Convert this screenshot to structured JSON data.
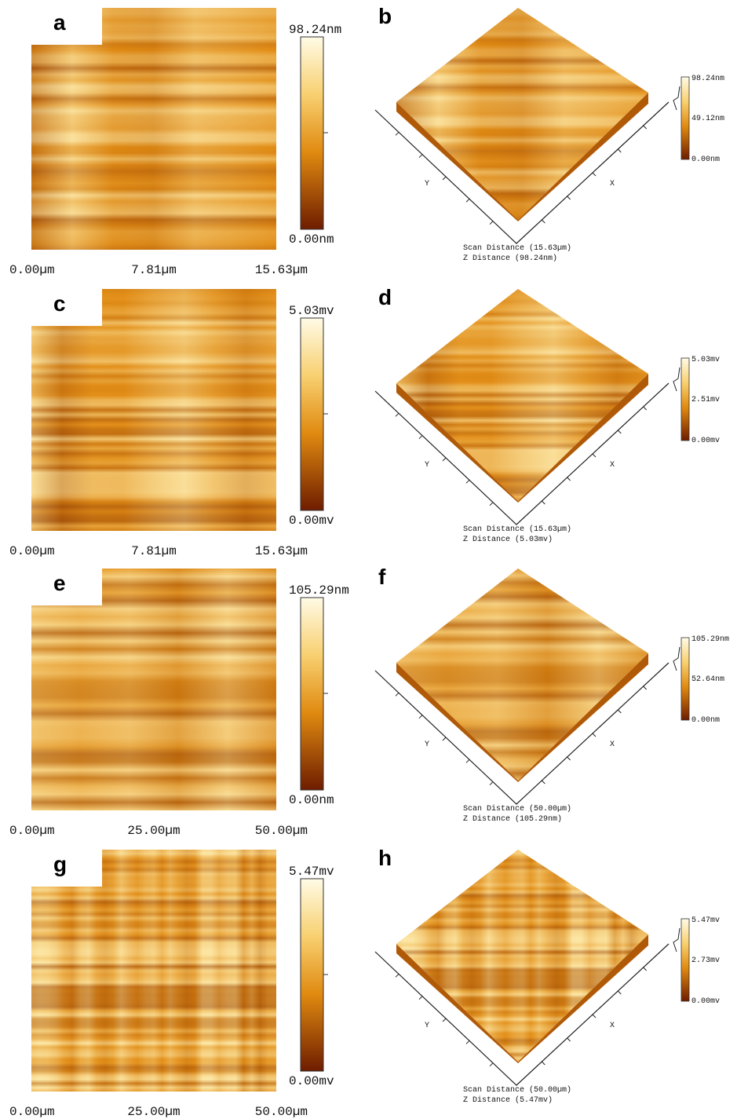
{
  "panels": [
    {
      "left": {
        "label": "a",
        "colorbar_max": "98.24nm",
        "colorbar_min": "0.00nm",
        "x_labels": [
          "0.00µm",
          "7.81µm",
          "15.63µm"
        ]
      },
      "right": {
        "label": "b",
        "colorbar_labels": [
          "98.24nm",
          "49.12nm",
          "0.00nm"
        ],
        "y_axis": "Y",
        "x_axis": "X",
        "scan_distance": "Scan Distance (15.63µm)",
        "z_distance": "Z Distance (98.24nm)"
      }
    },
    {
      "left": {
        "label": "c",
        "colorbar_max": "5.03mv",
        "colorbar_min": "0.00mv",
        "x_labels": [
          "0.00µm",
          "7.81µm",
          "15.63µm"
        ]
      },
      "right": {
        "label": "d",
        "colorbar_labels": [
          "5.03mv",
          "2.51mv",
          "0.00mv"
        ],
        "y_axis": "Y",
        "x_axis": "X",
        "scan_distance": "Scan Distance (15.63µm)",
        "z_distance": "Z Distance (5.03mv)"
      }
    },
    {
      "left": {
        "label": "e",
        "colorbar_max": "105.29nm",
        "colorbar_min": "0.00nm",
        "x_labels": [
          "0.00µm",
          "25.00µm",
          "50.00µm"
        ]
      },
      "right": {
        "label": "f",
        "colorbar_labels": [
          "105.29nm",
          "52.64nm",
          "0.00nm"
        ],
        "y_axis": "Y",
        "x_axis": "X",
        "scan_distance": "Scan Distance (50.00µm)",
        "z_distance": "Z Distance (105.29nm)"
      }
    },
    {
      "left": {
        "label": "g",
        "colorbar_max": "5.47mv",
        "colorbar_min": "0.00mv",
        "x_labels": [
          "0.00µm",
          "25.00µm",
          "50.00µm"
        ]
      },
      "right": {
        "label": "h",
        "colorbar_labels": [
          "5.47mv",
          "2.73mv",
          "0.00mv"
        ],
        "y_axis": "Y",
        "x_axis": "X",
        "scan_distance": "Scan Distance (50.00µm)",
        "z_distance": "Z Distance (5.47mv)"
      }
    }
  ]
}
